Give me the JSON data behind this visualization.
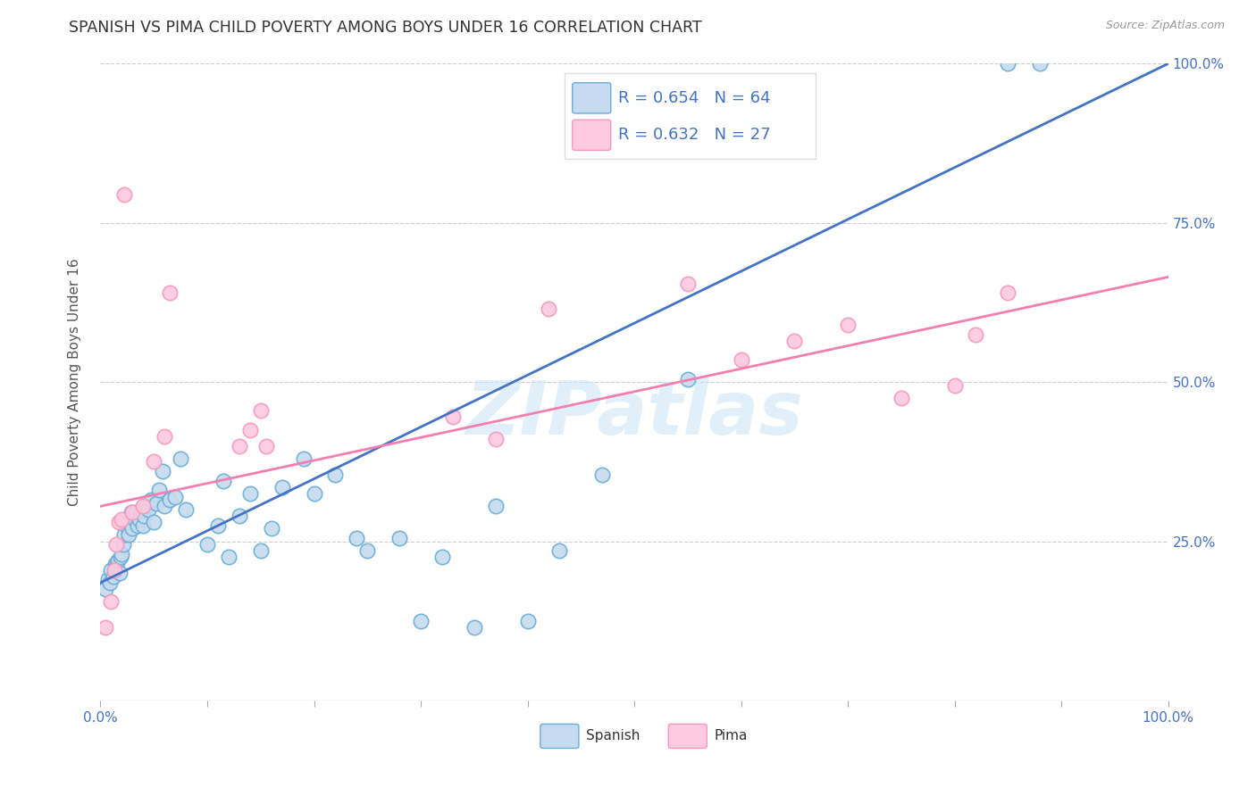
{
  "title": "SPANISH VS PIMA CHILD POVERTY AMONG BOYS UNDER 16 CORRELATION CHART",
  "source": "Source: ZipAtlas.com",
  "ylabel": "Child Poverty Among Boys Under 16",
  "watermark": "ZIPatlas",
  "blue_R": 0.654,
  "blue_N": 64,
  "pink_R": 0.632,
  "pink_N": 27,
  "blue_marker_face": "#c6dbef",
  "blue_marker_edge": "#6baed6",
  "pink_marker_face": "#fcc9e0",
  "pink_marker_edge": "#f799bb",
  "line_blue": "#4472c4",
  "line_pink": "#f47eb0",
  "legend_text_color": "#4472c4",
  "title_color": "#333333",
  "axis_label_color": "#555555",
  "tick_color": "#4472c4",
  "grid_color": "#cccccc",
  "background": "#ffffff",
  "blue_points_x": [
    0.005,
    0.007,
    0.009,
    0.01,
    0.012,
    0.014,
    0.015,
    0.016,
    0.018,
    0.019,
    0.02,
    0.021,
    0.022,
    0.024,
    0.025,
    0.026,
    0.027,
    0.029,
    0.03,
    0.031,
    0.032,
    0.033,
    0.035,
    0.036,
    0.038,
    0.04,
    0.041,
    0.043,
    0.045,
    0.047,
    0.05,
    0.052,
    0.055,
    0.058,
    0.06,
    0.065,
    0.07,
    0.075,
    0.08,
    0.1,
    0.11,
    0.115,
    0.12,
    0.13,
    0.14,
    0.15,
    0.16,
    0.17,
    0.19,
    0.2,
    0.22,
    0.24,
    0.25,
    0.28,
    0.3,
    0.32,
    0.35,
    0.37,
    0.4,
    0.43,
    0.47,
    0.55,
    0.85,
    0.88
  ],
  "blue_points_y": [
    0.175,
    0.19,
    0.185,
    0.205,
    0.195,
    0.215,
    0.21,
    0.22,
    0.2,
    0.225,
    0.23,
    0.245,
    0.26,
    0.275,
    0.28,
    0.26,
    0.28,
    0.295,
    0.27,
    0.29,
    0.285,
    0.295,
    0.275,
    0.285,
    0.3,
    0.275,
    0.29,
    0.305,
    0.3,
    0.315,
    0.28,
    0.31,
    0.33,
    0.36,
    0.305,
    0.315,
    0.32,
    0.38,
    0.3,
    0.245,
    0.275,
    0.345,
    0.225,
    0.29,
    0.325,
    0.235,
    0.27,
    0.335,
    0.38,
    0.325,
    0.355,
    0.255,
    0.235,
    0.255,
    0.125,
    0.225,
    0.115,
    0.305,
    0.125,
    0.235,
    0.355,
    0.505,
    1.0,
    1.0
  ],
  "pink_points_x": [
    0.005,
    0.01,
    0.013,
    0.015,
    0.017,
    0.02,
    0.022,
    0.03,
    0.04,
    0.05,
    0.06,
    0.065,
    0.13,
    0.14,
    0.15,
    0.155,
    0.33,
    0.37,
    0.42,
    0.55,
    0.6,
    0.65,
    0.7,
    0.75,
    0.8,
    0.82,
    0.85
  ],
  "pink_points_y": [
    0.115,
    0.155,
    0.205,
    0.245,
    0.28,
    0.285,
    0.795,
    0.295,
    0.305,
    0.375,
    0.415,
    0.64,
    0.4,
    0.425,
    0.455,
    0.4,
    0.445,
    0.41,
    0.615,
    0.655,
    0.535,
    0.565,
    0.59,
    0.475,
    0.495,
    0.575,
    0.64
  ],
  "blue_line_x0": 0.0,
  "blue_line_y0": 0.185,
  "blue_line_x1": 1.0,
  "blue_line_y1": 1.0,
  "pink_line_x0": 0.0,
  "pink_line_y0": 0.305,
  "pink_line_x1": 1.0,
  "pink_line_y1": 0.665,
  "xlim": [
    0.0,
    1.0
  ],
  "ylim": [
    0.0,
    1.0
  ]
}
